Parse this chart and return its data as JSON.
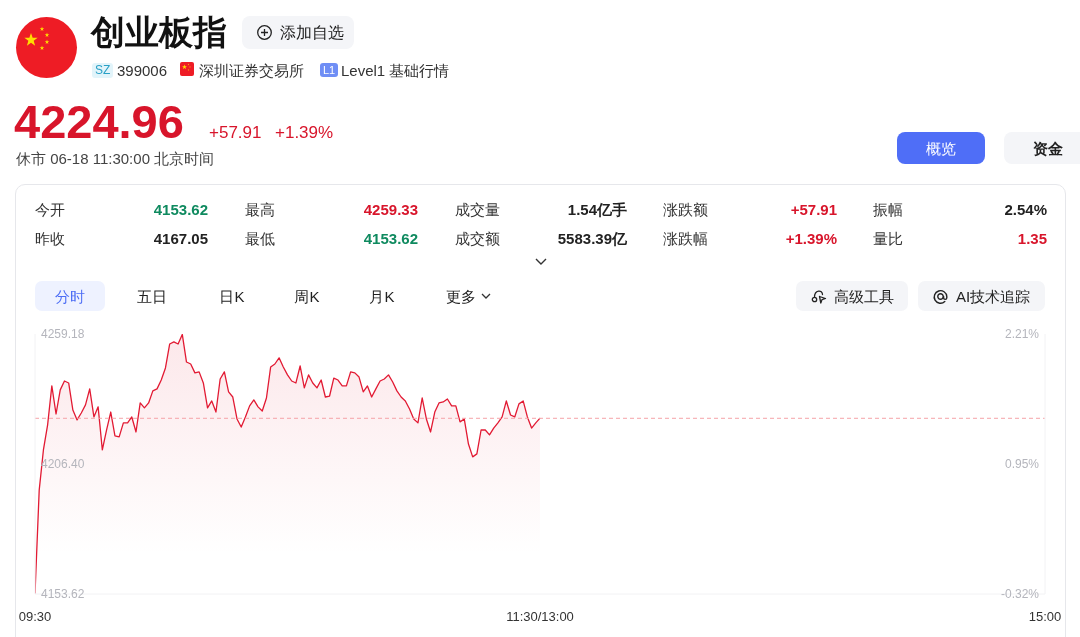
{
  "chart_data": {
    "type": "area",
    "title": "创业板指",
    "annotations": [
      "添加自选",
      "SZ",
      "399006",
      "深圳证券交易所",
      "L1",
      "Level1 基础行情",
      "4224.96",
      "+57.91",
      "+1.39%",
      "休市 06-18 11:30:00 北京时间",
      "概览",
      "资金",
      "今开",
      "4153.62",
      "最高",
      "4259.33",
      "成交量",
      "1.54亿手",
      "涨跌额",
      "+57.91",
      "振幅",
      "2.54%",
      "昨收",
      "4167.05",
      "最低",
      "4153.62",
      "成交额",
      "5583.39亿",
      "涨跌幅",
      "+1.39%",
      "量比",
      "1.35",
      "分时",
      "五日",
      "日K",
      "周K",
      "月K",
      "更多",
      "高级工具",
      "AI技术追踪"
    ],
    "categories": [
      "09:30",
      null,
      null,
      null,
      null,
      null,
      null,
      null,
      null,
      null,
      null,
      null,
      null,
      null,
      null,
      null,
      null,
      null,
      null,
      null,
      null,
      null,
      null,
      null,
      null,
      null,
      null,
      null,
      null,
      null,
      null,
      null,
      null,
      null,
      null,
      null,
      null,
      null,
      null,
      null,
      null,
      null,
      null,
      null,
      null,
      null,
      null,
      null,
      null,
      null,
      null,
      null,
      null,
      null,
      null,
      null,
      null,
      null,
      null,
      null,
      null,
      null,
      null,
      null,
      null,
      null,
      null,
      null,
      null,
      null,
      null,
      null,
      null,
      null,
      null,
      null,
      null,
      null,
      null,
      null,
      null,
      null,
      null,
      null,
      null,
      null,
      null,
      null,
      null,
      null,
      null,
      null,
      null,
      null,
      null,
      null,
      null,
      null,
      null,
      null,
      null,
      null,
      null,
      null,
      null,
      null,
      null,
      null,
      null,
      null,
      null,
      null,
      null,
      null,
      null,
      null,
      null,
      null,
      null,
      null,
      "11:30/13:00",
      null,
      null,
      null,
      null,
      null,
      null,
      null,
      null,
      null,
      null,
      null,
      null,
      null,
      null,
      null,
      null,
      null,
      null,
      null,
      null,
      null,
      null,
      null,
      null,
      null,
      null,
      null,
      null,
      null,
      null,
      null,
      null,
      null,
      null,
      null,
      null,
      null,
      null,
      null,
      null,
      null,
      null,
      null,
      null,
      null,
      null,
      null,
      null,
      null,
      null,
      null,
      null,
      null,
      null,
      null,
      null,
      null,
      null,
      null,
      null,
      null,
      null,
      null,
      null,
      null,
      null,
      null,
      null,
      null,
      null,
      null,
      null,
      null,
      null,
      null,
      null,
      null,
      null,
      null,
      null,
      null,
      null,
      null,
      null,
      null,
      null,
      null,
      null,
      null,
      null,
      null,
      null,
      null,
      null,
      null,
      null,
      null,
      null,
      null,
      null,
      null,
      null,
      null,
      null,
      null,
      null,
      null,
      null,
      null,
      null,
      null,
      null,
      null,
      null,
      null,
      null,
      null,
      null,
      null,
      "15:00"
    ],
    "series": [
      {
        "color": "#e21a33",
        "values": [
          4153.7,
          4195.8,
          4212.1,
          4222.3,
          4238.1,
          4226.7,
          4236.5,
          4240.1,
          4239.3,
          4228.3,
          4224.3,
          4227.1,
          4230.4,
          4236.9,
          4225.5,
          4229.6,
          4212.1,
          4220.2,
          4227.5,
          4217.8,
          4217.4,
          4223.1,
          4223.1,
          4225.5,
          4219.4,
          4231.2,
          4229.2,
          4231.2,
          4236.1,
          4236.9,
          4240.5,
          4245.4,
          4255.1,
          4256.0,
          4255.1,
          4259.0,
          4247.8,
          4247.0,
          4243.4,
          4243.8,
          4239.3,
          4229.2,
          4232.0,
          4227.5,
          4240.9,
          4243.8,
          4235.7,
          4233.6,
          4224.7,
          4221.4,
          4225.5,
          4230.0,
          4232.4,
          4229.6,
          4227.9,
          4233.2,
          4245.8,
          4247.0,
          4249.5,
          4245.8,
          4242.6,
          4240.1,
          4239.3,
          4246.2,
          4237.3,
          4242.6,
          4239.3,
          4237.3,
          4240.5,
          4233.6,
          4234.0,
          4241.3,
          4240.5,
          4238.1,
          4238.1,
          4243.8,
          4243.4,
          4241.7,
          4235.7,
          4238.1,
          4233.6,
          4236.9,
          4240.1,
          4240.9,
          4242.6,
          4239.7,
          4236.1,
          4233.6,
          4232.0,
          4228.7,
          4224.7,
          4223.1,
          4233.2,
          4224.7,
          4219.4,
          4227.5,
          4231.2,
          4231.6,
          4232.8,
          4230.0,
          4230.0,
          4223.5,
          4224.7,
          4214.5,
          4209.3,
          4210.5,
          4220.2,
          4220.2,
          4218.2,
          4221.0,
          4223.1,
          4225.5,
          4232.0,
          4226.3,
          4225.5,
          4230.8,
          4232.0,
          4225.5,
          4221.0,
          4223.1,
          4225.0,
          null,
          null,
          null,
          null,
          null,
          null,
          null,
          null,
          null,
          null,
          null,
          null,
          null,
          null,
          null,
          null,
          null,
          null,
          null,
          null,
          null,
          null,
          null,
          null,
          null,
          null,
          null,
          null,
          null,
          null,
          null,
          null,
          null,
          null,
          null,
          null,
          null,
          null,
          null,
          null,
          null,
          null,
          null,
          null,
          null,
          null,
          null,
          null,
          null,
          null,
          null,
          null,
          null,
          null,
          null,
          null,
          null,
          null,
          null,
          null,
          null,
          null,
          null,
          null,
          null,
          null,
          null,
          null,
          null,
          null,
          null,
          null,
          null,
          null,
          null,
          null,
          null,
          null,
          null,
          null,
          null,
          null,
          null,
          null,
          null,
          null,
          null,
          null,
          null,
          null,
          null,
          null,
          null,
          null,
          null,
          null,
          null,
          null,
          null,
          null,
          null,
          null,
          null,
          null,
          null,
          null,
          null,
          null,
          null,
          null,
          null,
          null,
          null,
          null,
          null,
          null,
          null,
          null,
          null,
          null
        ]
      }
    ],
    "ylim": [
      4153.62,
      4259.18
    ],
    "yticks": [
      4153.62,
      {
        "value": 4206.4,
        "label": "4206.40"
      },
      4259.18
    ],
    "y2lim": [
      -0.32,
      2.21
    ],
    "y2ticks": [
      {
        "value": -0.32,
        "label": "-0.32%"
      },
      {
        "value": 0.95,
        "label": "0.95%"
      },
      {
        "value": 2.21,
        "label": "2.21%"
      }
    ],
    "ref_lines": [
      {
        "axis": "y",
        "value": 4224.96,
        "color": "#f5a3a8",
        "line_style": "dashed"
      }
    ]
  }
}
